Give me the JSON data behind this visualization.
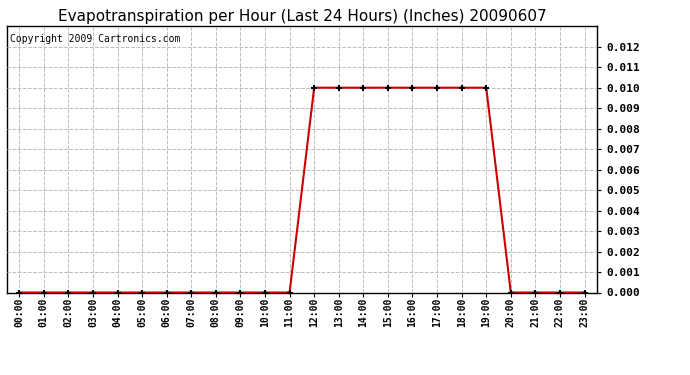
{
  "title": "Evapotranspiration per Hour (Last 24 Hours) (Inches) 20090607",
  "copyright_text": "Copyright 2009 Cartronics.com",
  "x_labels": [
    "00:00",
    "01:00",
    "02:00",
    "03:00",
    "04:00",
    "05:00",
    "06:00",
    "07:00",
    "08:00",
    "09:00",
    "10:00",
    "11:00",
    "12:00",
    "13:00",
    "14:00",
    "15:00",
    "16:00",
    "17:00",
    "18:00",
    "19:00",
    "20:00",
    "21:00",
    "22:00",
    "23:00"
  ],
  "y_values": [
    0.0,
    0.0,
    0.0,
    0.0,
    0.0,
    0.0,
    0.0,
    0.0,
    0.0,
    0.0,
    0.0,
    0.0,
    0.01,
    0.01,
    0.01,
    0.01,
    0.01,
    0.01,
    0.01,
    0.01,
    0.0,
    0.0,
    0.0,
    0.0
  ],
  "line_color": "#cc0000",
  "marker": "+",
  "marker_color": "#000000",
  "marker_size": 5,
  "marker_linewidth": 1.5,
  "line_width": 1.5,
  "grid_color": "#bbbbbb",
  "background_color": "#ffffff",
  "title_fontsize": 11,
  "copyright_fontsize": 7,
  "tick_label_fontsize": 8,
  "xtick_fontsize": 7,
  "ylim": [
    0,
    0.013
  ],
  "yticks": [
    0.0,
    0.001,
    0.002,
    0.003,
    0.004,
    0.005,
    0.006,
    0.007,
    0.008,
    0.009,
    0.01,
    0.011,
    0.012
  ]
}
